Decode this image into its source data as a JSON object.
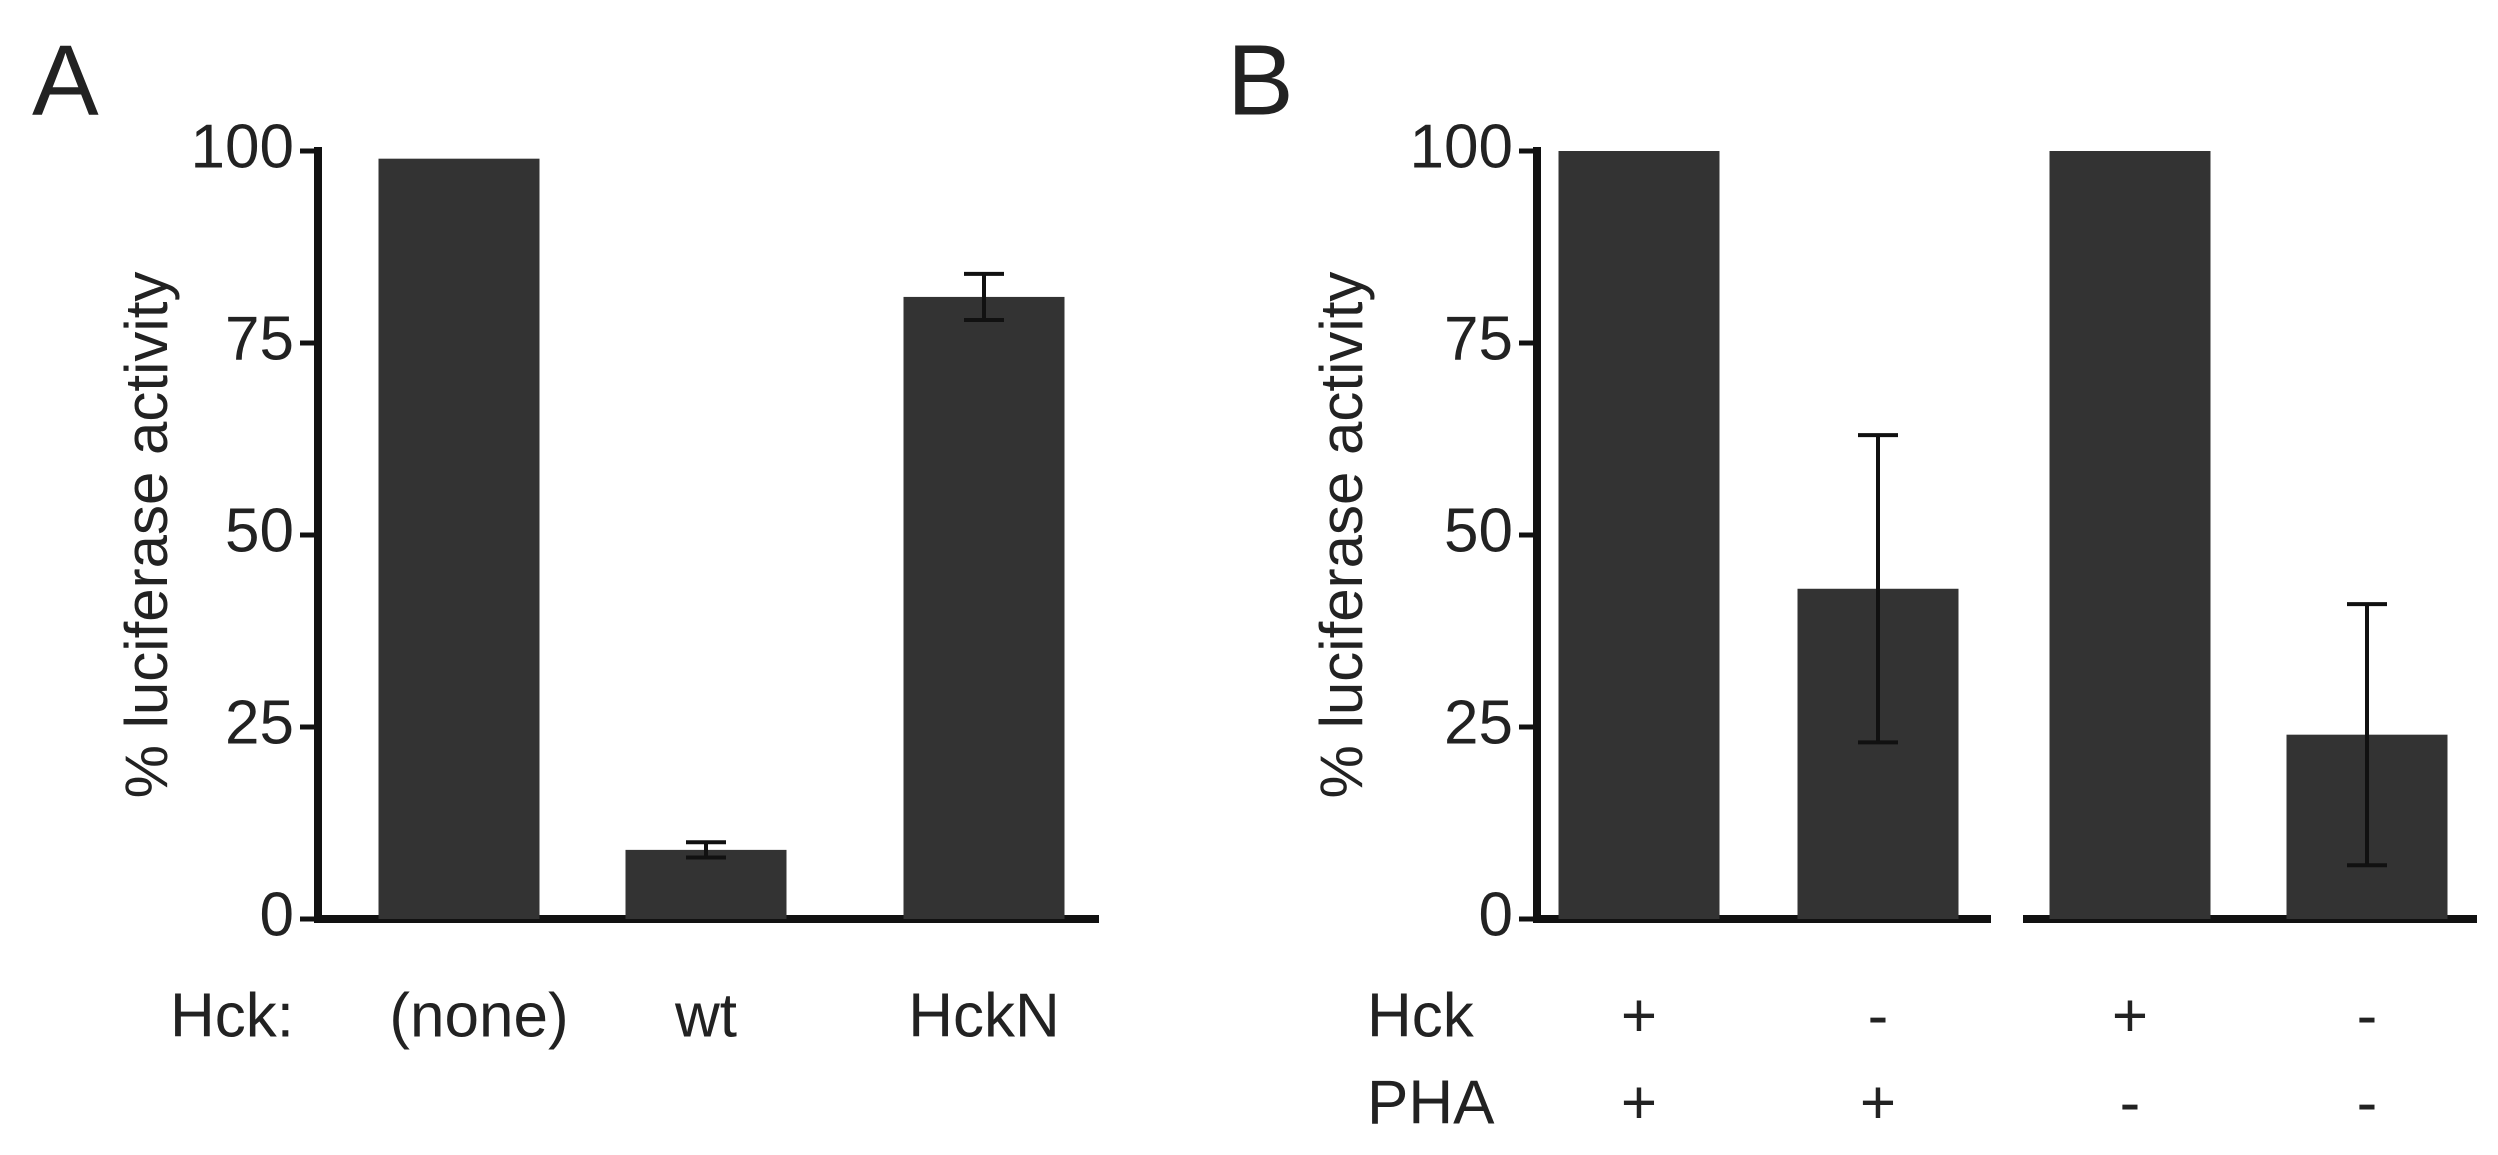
{
  "chart_data": [
    {
      "type": "bar",
      "panel_label": "A",
      "ylabel": "% luciferase activity",
      "xlabel": "Hck:",
      "categories": [
        "(none)",
        "wt",
        "HckN"
      ],
      "values": [
        99,
        9,
        81
      ],
      "errors": [
        null,
        1,
        3
      ],
      "color": "#333333",
      "ylim": [
        0,
        100
      ],
      "yticks": [
        0,
        25,
        50,
        75,
        100
      ]
    },
    {
      "type": "bar",
      "panel_label": "B",
      "ylabel": "% luciferase activity",
      "rows": [
        {
          "name": "Hck",
          "values": [
            "+",
            "-",
            "+",
            "-"
          ]
        },
        {
          "name": "PHA",
          "values": [
            "+",
            "+",
            "-",
            "-"
          ]
        }
      ],
      "values": [
        100,
        43,
        100,
        24
      ],
      "errors": [
        null,
        20,
        null,
        17
      ],
      "color": "#333333",
      "ylim": [
        0,
        100
      ],
      "yticks": [
        0,
        25,
        50,
        75,
        100
      ]
    }
  ]
}
